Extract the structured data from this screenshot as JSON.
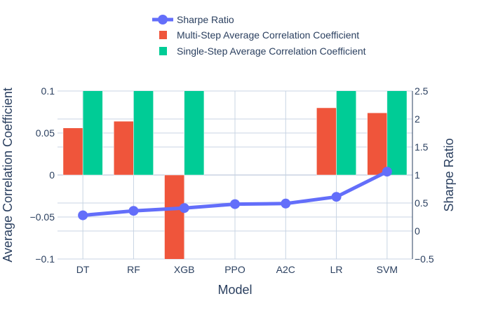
{
  "chart_data": {
    "type": "bar",
    "categories": [
      "DT",
      "RF",
      "XGB",
      "PPO",
      "A2C",
      "LR",
      "SVM"
    ],
    "series": [
      {
        "name": "Multi-Step Average Correlation Coefficient",
        "kind": "bar",
        "axis": "left",
        "color": "#ef553b",
        "values": [
          0.056,
          0.064,
          -0.12,
          null,
          null,
          0.08,
          0.074
        ]
      },
      {
        "name": "Single-Step Average Correlation Coefficient",
        "kind": "bar",
        "axis": "left",
        "color": "#00cc96",
        "values": [
          0.12,
          0.12,
          0.12,
          null,
          null,
          0.12,
          0.12
        ]
      },
      {
        "name": "Sharpe Ratio",
        "kind": "line",
        "axis": "right",
        "color": "#636efa",
        "values": [
          0.28,
          0.36,
          0.41,
          0.48,
          0.49,
          0.61,
          1.06
        ]
      }
    ],
    "xlabel": "Model",
    "ylabel": "Average Correlation Coefficient",
    "y2label": "Sharpe Ratio",
    "ylim": [
      -0.1,
      0.1
    ],
    "y2lim": [
      -0.5,
      2.5
    ],
    "yticks": [
      "0.1",
      "0.05",
      "0",
      "−0.05",
      "−0.1"
    ],
    "yticks_values": [
      0.1,
      0.05,
      0,
      -0.05,
      -0.1
    ],
    "y2ticks": [
      "2.5",
      "2",
      "1.5",
      "1",
      "0.5",
      "0",
      "−0.5"
    ],
    "y2ticks_values": [
      2.5,
      2,
      1.5,
      1,
      0.5,
      0,
      -0.5
    ],
    "legend_order": [
      "Sharpe Ratio",
      "Multi-Step Average Correlation Coefficient",
      "Single-Step Average Correlation Coefficient"
    ],
    "legend_position": "top-center",
    "grid": true,
    "grid_color": "#c8d4e3"
  }
}
